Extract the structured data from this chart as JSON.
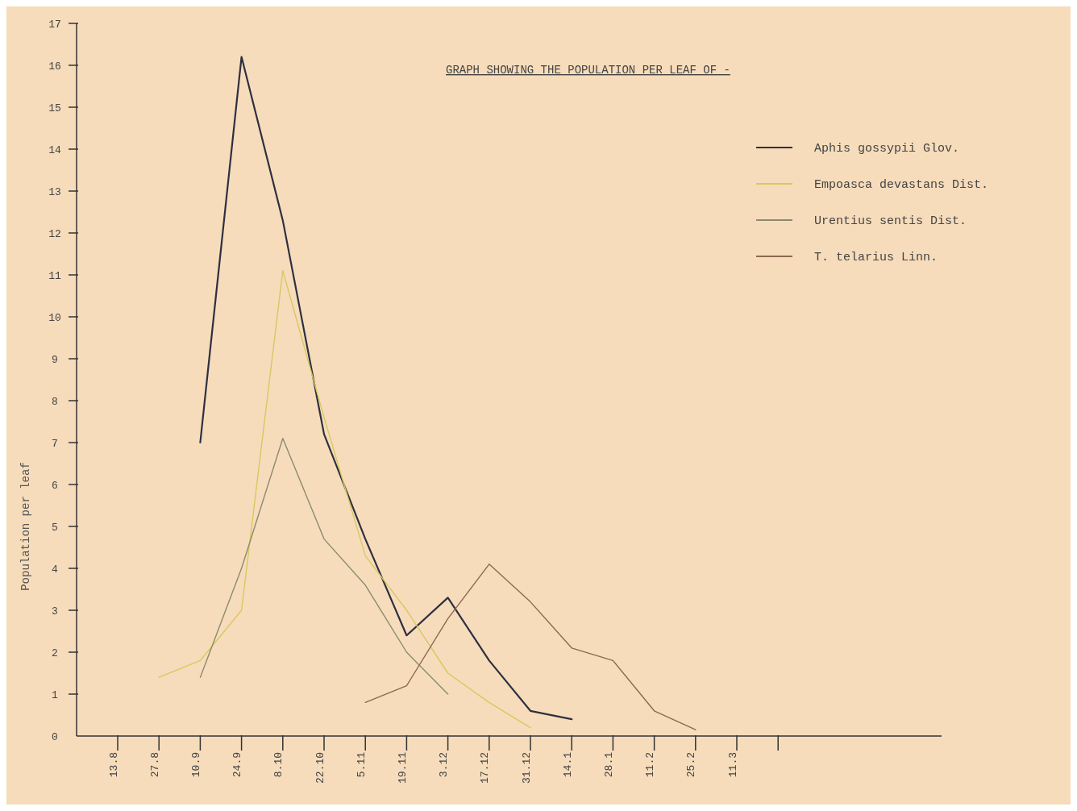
{
  "chart_data": {
    "type": "line",
    "title": "GRAPH SHOWING THE POPULATION PER LEAF OF -",
    "ylabel": "Population per leaf",
    "categories": [
      "13.8",
      "27.8",
      "10.9",
      "24.9",
      "8.10",
      "22.10",
      "5.11",
      "19.11",
      "3.12",
      "17.12",
      "31.12",
      "14.1",
      "28.1",
      "11.2",
      "25.2",
      "11.3",
      null
    ],
    "ylim": [
      0,
      17
    ],
    "yticks": [
      0,
      1,
      2,
      3,
      4,
      5,
      6,
      7,
      8,
      9,
      10,
      11,
      12,
      13,
      14,
      15,
      16,
      17
    ],
    "grid": false,
    "legend": "top right",
    "marker": "none",
    "line_style": "solid",
    "series": [
      {
        "name": "Aphis gossypii Glov.",
        "color": "#2e3040",
        "values": [
          null,
          null,
          7.0,
          16.2,
          12.3,
          7.2,
          4.7,
          2.4,
          3.3,
          1.8,
          0.6,
          0.4,
          null,
          null,
          null,
          null,
          null
        ]
      },
      {
        "name": "Empoasca devastans Dist.",
        "color": "#d8c860",
        "values": [
          null,
          1.4,
          1.8,
          3.0,
          11.1,
          7.6,
          4.3,
          3.0,
          1.5,
          0.8,
          0.2,
          null,
          null,
          null,
          null,
          null,
          null
        ]
      },
      {
        "name": "Urentius sentis Dist.",
        "color": "#8c8a70",
        "values": [
          null,
          null,
          1.4,
          4.0,
          7.1,
          4.7,
          3.6,
          2.0,
          1.0,
          null,
          null,
          null,
          null,
          null,
          null,
          null,
          null
        ]
      },
      {
        "name": "T. telarius Linn.",
        "color": "#8a6a50",
        "values": [
          null,
          null,
          null,
          null,
          null,
          null,
          0.8,
          1.2,
          2.8,
          4.1,
          3.2,
          2.1,
          1.8,
          0.6,
          0.15,
          null,
          null
        ]
      }
    ]
  }
}
